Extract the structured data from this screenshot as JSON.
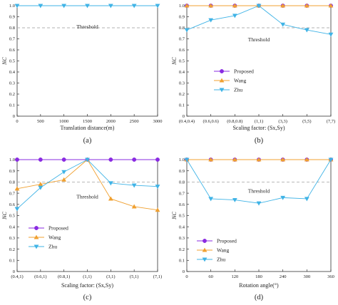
{
  "colors": {
    "proposed": "#8a2be2",
    "wang": "#f0a030",
    "zhu": "#3fb3e6",
    "threshold": "#b0b0b0"
  },
  "threshold_label": "Threshold",
  "chart_data": [
    {
      "type": "line",
      "caption": "(a)",
      "xlabel": "Translation distance(m)",
      "ylabel": "NC",
      "x_numeric": true,
      "xlim": [
        0,
        3000
      ],
      "x_ticks": [
        "0",
        "500",
        "1000",
        "1500",
        "2000",
        "2500",
        "3000"
      ],
      "ylim": [
        0,
        1.0
      ],
      "y_ticks": [
        "0",
        "0.1",
        "0.2",
        "0.3",
        "0.4",
        "0.5",
        "0.6",
        "0.7",
        "0.8",
        "0.9",
        "1.0"
      ],
      "threshold": 0.8,
      "categories": [
        "0",
        "500",
        "1000",
        "1500",
        "2000",
        "2500",
        "3000"
      ],
      "series": [
        {
          "name": "",
          "key": "zhu",
          "marker": "tri-down",
          "x": [
            0,
            500,
            1000,
            1500,
            2000,
            2500,
            3000
          ],
          "values": [
            1,
            1,
            1,
            1,
            1,
            1,
            1
          ]
        }
      ],
      "legend": []
    },
    {
      "type": "line",
      "caption": "(b)",
      "xlabel": "Scaling factor: (Sx,Sy)",
      "ylabel": "NC",
      "x_numeric": false,
      "x_ticks": [
        "(0.4,0.4)",
        "(0.6,0.6)",
        "(0.8,0.8)",
        "(1,1)",
        "(3,3)",
        "(5,5)",
        "(7,7)"
      ],
      "ylim": [
        0,
        1.0
      ],
      "y_ticks": [
        "0",
        "0.1",
        "0.2",
        "0.3",
        "0.4",
        "0.5",
        "0.6",
        "0.7",
        "0.8",
        "0.9",
        "1.0"
      ],
      "threshold": 0.8,
      "categories": [
        "(0.4,0.4)",
        "(0.6,0.6)",
        "(0.8,0.8)",
        "(1,1)",
        "(3,3)",
        "(5,5)",
        "(7,7)"
      ],
      "series": [
        {
          "name": "Proposed",
          "key": "proposed",
          "marker": "circle",
          "values": [
            1,
            1,
            1,
            1,
            1,
            1,
            1
          ]
        },
        {
          "name": "Wang",
          "key": "wang",
          "marker": "tri-up",
          "values": [
            1,
            1,
            1,
            1,
            1,
            1,
            1
          ]
        },
        {
          "name": "Zhu",
          "key": "zhu",
          "marker": "tri-down",
          "values": [
            0.78,
            0.87,
            0.91,
            1.0,
            0.83,
            0.78,
            0.74
          ]
        }
      ],
      "legend": [
        "Proposed",
        "Wang",
        "Zhu"
      ]
    },
    {
      "type": "line",
      "caption": "(c)",
      "xlabel": "Scaling factor: (Sx,Sy)",
      "ylabel": "NC",
      "x_numeric": false,
      "x_ticks": [
        "(0.4,1)",
        "(0.6,1)",
        "(0.8,1)",
        "(1,1)",
        "(3,1)",
        "(5,1)",
        "(7,1)"
      ],
      "ylim": [
        0,
        1.0
      ],
      "y_ticks": [
        "0",
        "0.1",
        "0.2",
        "0.3",
        "0.4",
        "0.5",
        "0.6",
        "0.7",
        "0.8",
        "0.9",
        "1.0"
      ],
      "threshold": 0.8,
      "categories": [
        "(0.4,1)",
        "(0.6,1)",
        "(0.8,1)",
        "(1,1)",
        "(3,1)",
        "(5,1)",
        "(7,1)"
      ],
      "series": [
        {
          "name": "Proposed",
          "key": "proposed",
          "marker": "circle",
          "values": [
            1,
            1,
            1,
            1,
            1,
            1,
            1
          ]
        },
        {
          "name": "Wang",
          "key": "wang",
          "marker": "tri-up",
          "values": [
            0.74,
            0.78,
            0.82,
            1.0,
            0.65,
            0.58,
            0.55
          ]
        },
        {
          "name": "Zhu",
          "key": "zhu",
          "marker": "tri-down",
          "values": [
            0.56,
            0.75,
            0.89,
            1.0,
            0.79,
            0.77,
            0.76
          ]
        }
      ],
      "legend": [
        "Proposed",
        "Wang",
        "Zhu"
      ]
    },
    {
      "type": "line",
      "caption": "(d)",
      "xlabel": "Rotation angle(°)",
      "ylabel": "NC",
      "x_numeric": true,
      "xlim": [
        0,
        360
      ],
      "x_ticks": [
        "0",
        "60",
        "120",
        "180",
        "240",
        "300",
        "360"
      ],
      "ylim": [
        0,
        1.0
      ],
      "y_ticks": [
        "0",
        "0.1",
        "0.2",
        "0.3",
        "0.4",
        "0.5",
        "0.6",
        "0.7",
        "0.8",
        "0.9",
        "1.0"
      ],
      "threshold": 0.8,
      "categories": [
        "0",
        "60",
        "120",
        "180",
        "240",
        "300",
        "360"
      ],
      "series": [
        {
          "name": "Proposed",
          "key": "proposed",
          "marker": "circle",
          "x": [
            0,
            60,
            120,
            180,
            240,
            300,
            360
          ],
          "values": [
            1,
            1,
            1,
            1,
            1,
            1,
            1
          ]
        },
        {
          "name": "Wang",
          "key": "wang",
          "marker": "tri-up",
          "x": [
            0,
            60,
            120,
            180,
            240,
            300,
            360
          ],
          "values": [
            1,
            1,
            1,
            1,
            1,
            1,
            1
          ]
        },
        {
          "name": "Zhu",
          "key": "zhu",
          "marker": "tri-down",
          "x": [
            0,
            60,
            120,
            180,
            240,
            300,
            360
          ],
          "values": [
            1.0,
            0.65,
            0.64,
            0.61,
            0.66,
            0.65,
            1.0
          ]
        }
      ],
      "legend": [
        "Proposed",
        "Wang",
        "Zhu"
      ]
    }
  ]
}
